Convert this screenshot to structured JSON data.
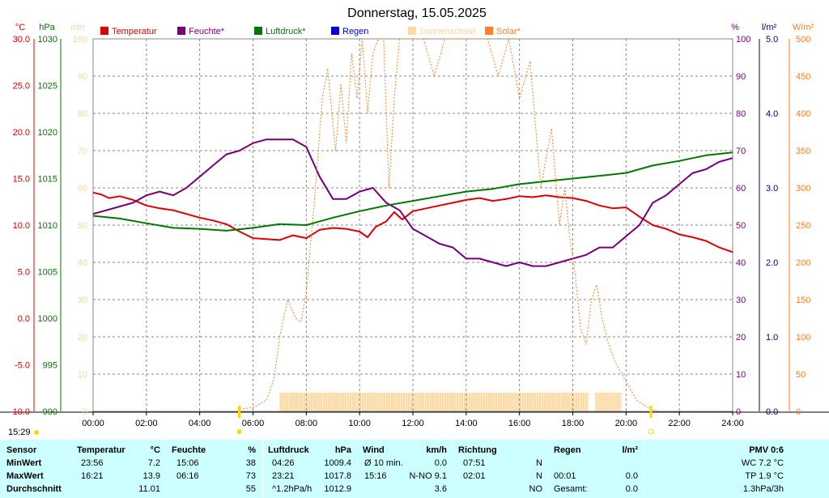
{
  "colors": {
    "temperature": "#dd0000",
    "humidity": "#770077",
    "pressure": "#007700",
    "rain": "#0000dd",
    "sunshine": "#ffd9a0",
    "solar": "#ff7f27",
    "panel": "#ccffff",
    "grid": "#888888"
  },
  "chart_data": {
    "type": "line",
    "title": "Donnerstag, 15.05.2025",
    "unit_labels": {
      "temperature": "°C",
      "pressure": "hPa",
      "sunshine": "min",
      "humidity": "%",
      "rain": "l/m²",
      "solar": "W/m²"
    },
    "legend": [
      "Temperatur",
      "Feuchte*",
      "Luftdruck*",
      "Regen",
      "Sonnenschein",
      "Solar*"
    ],
    "x_ticks": [
      "00:00",
      "02:00",
      "04:00",
      "06:00",
      "08:00",
      "10:00",
      "12:00",
      "14:00",
      "16:00",
      "18:00",
      "20:00",
      "22:00",
      "24:00"
    ],
    "temperature_ticks": [
      "30.0",
      "25.0",
      "20.0",
      "15.0",
      "10.0",
      "5.0",
      "0.0",
      "-5.0",
      "-10.0"
    ],
    "pressure_ticks": [
      "1030",
      "1025",
      "1020",
      "1015",
      "1010",
      "1005",
      "1000",
      "995",
      "990"
    ],
    "sunshine_ticks": [
      "100",
      "90",
      "80",
      "70",
      "60",
      "50",
      "40",
      "30",
      "20",
      "10",
      "0"
    ],
    "humidity_ticks": [
      "100",
      "90",
      "80",
      "70",
      "60",
      "50",
      "40",
      "30",
      "20",
      "10",
      "0"
    ],
    "rain_ticks": [
      "5.0",
      "4.0",
      "3.0",
      "2.0",
      "1.0",
      "0.0"
    ],
    "solar_ticks": [
      "500",
      "450",
      "400",
      "350",
      "300",
      "250",
      "200",
      "150",
      "100",
      "50",
      "0"
    ],
    "ranges": {
      "temperature": [
        -10,
        30
      ],
      "pressure": [
        990,
        1030
      ],
      "humidity": [
        0,
        100
      ],
      "solar": [
        0,
        500
      ],
      "sunshine": [
        0,
        100
      ],
      "rain": [
        0,
        5
      ]
    },
    "grid": true,
    "series": [
      {
        "name": "Temperatur",
        "axis": "temperature",
        "x": [
          0,
          0.3,
          0.6,
          1,
          1.5,
          2,
          2.5,
          3,
          3.5,
          4,
          4.5,
          5,
          5.5,
          6,
          6.5,
          7,
          7.5,
          8,
          8.5,
          9,
          9.5,
          10,
          10.3,
          10.6,
          11,
          11.3,
          11.6,
          12,
          12.5,
          13,
          13.5,
          14,
          14.5,
          15,
          15.5,
          16,
          16.5,
          17,
          17.5,
          18,
          18.5,
          19,
          19.5,
          20,
          20.5,
          21,
          21.5,
          22,
          22.5,
          23,
          23.5,
          24
        ],
        "y": [
          13.5,
          13.3,
          12.9,
          13.1,
          12.7,
          12.1,
          11.8,
          11.6,
          11.2,
          10.8,
          10.5,
          10.1,
          9.3,
          8.6,
          8.5,
          8.4,
          8.9,
          8.6,
          9.5,
          9.7,
          9.6,
          9.3,
          8.7,
          9.8,
          10.4,
          11.4,
          10.6,
          11.5,
          11.8,
          12.1,
          12.4,
          12.7,
          12.9,
          12.6,
          12.8,
          13.1,
          13.0,
          13.2,
          13.0,
          12.9,
          12.6,
          12.1,
          11.8,
          11.9,
          10.9,
          10.0,
          9.6,
          9.0,
          8.7,
          8.3,
          7.6,
          7.1
        ]
      },
      {
        "name": "Feuchte*",
        "axis": "humidity",
        "x": [
          0,
          0.5,
          1,
          1.5,
          2,
          2.5,
          3,
          3.5,
          4,
          4.5,
          5,
          5.5,
          6,
          6.5,
          7,
          7.5,
          8,
          8.5,
          9,
          9.5,
          10,
          10.5,
          11,
          11.5,
          12,
          12.5,
          13,
          13.5,
          14,
          14.5,
          15,
          15.5,
          16,
          16.5,
          17,
          17.5,
          18,
          18.5,
          19,
          19.5,
          20,
          20.5,
          21,
          21.5,
          22,
          22.5,
          23,
          23.5,
          24
        ],
        "y": [
          53,
          54,
          55,
          56,
          58,
          59,
          58,
          60,
          63,
          66,
          69,
          70,
          72,
          73,
          73,
          73,
          71,
          63,
          57,
          57,
          59,
          60,
          56,
          54,
          49,
          47,
          45,
          44,
          41,
          41,
          40,
          39,
          40,
          39,
          39,
          40,
          41,
          42,
          44,
          44,
          47,
          50,
          56,
          58,
          61,
          64,
          65,
          67,
          68
        ]
      },
      {
        "name": "Luftdruck*",
        "axis": "pressure",
        "x": [
          0,
          1,
          2,
          3,
          4,
          5,
          6,
          7,
          8,
          9,
          10,
          11,
          12,
          13,
          14,
          15,
          16,
          17,
          18,
          19,
          20,
          21,
          22,
          23,
          24
        ],
        "y": [
          1011.0,
          1010.7,
          1010.2,
          1009.7,
          1009.6,
          1009.4,
          1009.7,
          1010.1,
          1010.0,
          1010.8,
          1011.5,
          1012.1,
          1012.6,
          1013.1,
          1013.6,
          1013.9,
          1014.4,
          1014.7,
          1015.0,
          1015.3,
          1015.6,
          1016.4,
          1016.9,
          1017.5,
          1017.8
        ]
      },
      {
        "name": "Solar*",
        "axis": "solar",
        "dashed": true,
        "x": [
          5.5,
          6,
          6.5,
          6.8,
          7,
          7.3,
          7.6,
          7.8,
          8,
          8.3,
          8.6,
          8.8,
          9.1,
          9.3,
          9.5,
          9.7,
          9.9,
          10.1,
          10.3,
          10.5,
          10.7,
          10.9,
          11.1,
          11.3,
          11.5,
          11.7,
          12,
          12.4,
          12.8,
          13.2,
          13.6,
          14,
          14.4,
          14.8,
          15.2,
          15.6,
          16,
          16.4,
          16.8,
          17.2,
          17.5,
          17.7,
          17.9,
          18.1,
          18.3,
          18.5,
          18.7,
          18.9,
          19.1,
          19.3,
          19.6,
          20,
          20.4,
          20.8,
          21.2
        ],
        "y": [
          3,
          5,
          15,
          45,
          100,
          150,
          125,
          120,
          160,
          280,
          420,
          460,
          350,
          440,
          360,
          480,
          420,
          500,
          400,
          480,
          500,
          500,
          300,
          420,
          500,
          500,
          500,
          500,
          450,
          500,
          500,
          500,
          500,
          500,
          450,
          500,
          420,
          470,
          300,
          380,
          250,
          300,
          230,
          180,
          110,
          90,
          150,
          170,
          125,
          95,
          65,
          40,
          15,
          5,
          0
        ]
      }
    ],
    "sunshine_bars": [
      {
        "start": "07:00",
        "end": "18:35"
      },
      {
        "start": "18:50",
        "end": "19:50"
      }
    ],
    "time_markers": {
      "left_time": "15:29",
      "sunrise_time": "05:29",
      "sunset_time": "20:56"
    }
  },
  "table": {
    "headers": {
      "sensor": "Sensor",
      "temperatur": "Temperatur",
      "temp_unit": "°C",
      "feuchte": "Feuchte",
      "feuchte_unit": "%",
      "luftdruck": "Luftdruck",
      "druck_unit": "hPa",
      "wind": "Wind",
      "wind_unit": "km/h",
      "richtung": "Richtung",
      "regen": "Regen",
      "regen_unit": "l/m²",
      "pmv": "PMV 0:6"
    },
    "rows": [
      {
        "label": "MinWert",
        "temp_time": "23:56",
        "temp_val": "7.2",
        "hum_time": "15:06",
        "hum_val": "38",
        "press_time": "04:26",
        "press_val": "1009.4",
        "wind_label": "Ø 10 min.",
        "wind_val": "0.0",
        "dir_time": "07:51",
        "dir_val": "N",
        "rain_time": "",
        "rain_val": "",
        "extra": "WC 7.2 °C"
      },
      {
        "label": "MaxWert",
        "temp_time": "16:21",
        "temp_val": "13.9",
        "hum_time": "06:16",
        "hum_val": "73",
        "press_time": "23:21",
        "press_val": "1017.8",
        "wind_label": "15:16",
        "wind_val": "N-NO 9.1",
        "dir_time": "02:01",
        "dir_val": "N",
        "rain_time": "00:01",
        "rain_val": "0.0",
        "extra": "TP 1.9 °C"
      },
      {
        "label": "Durchschnitt",
        "temp_time": "",
        "temp_val": "11.01",
        "hum_time": "",
        "hum_val": "55",
        "press_time": "^1.2hPa/h",
        "press_val": "1012.9",
        "wind_label": "",
        "wind_val": "3.6",
        "dir_time": "",
        "dir_val": "NO",
        "rain_time": "Gesamt:",
        "rain_val": "0.0",
        "extra": "1.3hPa/3h"
      }
    ]
  }
}
